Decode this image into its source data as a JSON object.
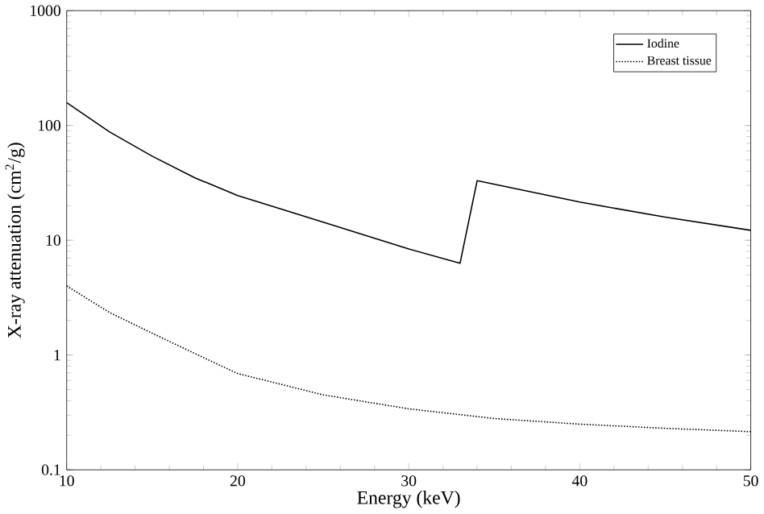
{
  "chart_data": {
    "type": "line",
    "xlabel": "Energy (keV)",
    "ylabel": "X-ray attenuation (cm$^{2}$/g)",
    "log": "y",
    "grid": false,
    "legend": "top right",
    "marker": "none",
    "xlim": [
      10,
      50
    ],
    "xticks": [
      10,
      20,
      30,
      40,
      50
    ],
    "ylim": [
      0.1,
      1000
    ],
    "yticks": [
      0.1,
      1,
      10,
      100,
      1000
    ],
    "series": [
      {
        "name": "Iodine",
        "color": "#000000",
        "line_style": "solid",
        "x": [
          10,
          12.5,
          15,
          17.5,
          20,
          25,
          30,
          33,
          34,
          40,
          45,
          50
        ],
        "values": [
          158,
          88,
          54,
          35,
          24.5,
          14.4,
          8.4,
          6.3,
          33,
          21.5,
          15.9,
          12.2
        ]
      },
      {
        "name": "Breast tissue",
        "color": "#000000",
        "line_style": "dotted",
        "x": [
          10,
          12.5,
          15,
          17.5,
          20,
          25,
          30,
          35,
          40,
          45,
          50
        ],
        "values": [
          4.0,
          2.35,
          1.55,
          1.03,
          0.69,
          0.45,
          0.34,
          0.28,
          0.25,
          0.23,
          0.215
        ]
      }
    ]
  }
}
